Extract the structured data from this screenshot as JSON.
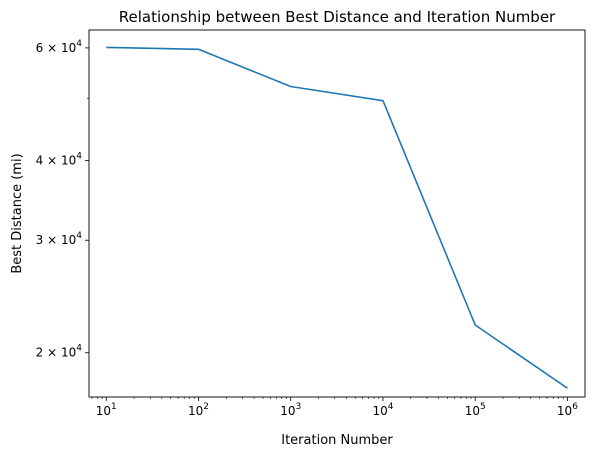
{
  "chart_data": {
    "type": "line",
    "title": "Relationship between Best Distance and Iteration Number",
    "xlabel": "Iteration Number",
    "ylabel": "Best Distance (mi)",
    "xscale": "log",
    "yscale": "log",
    "xlim": [
      6.5,
      1550000
    ],
    "ylim": [
      17050,
      64000
    ],
    "grid": false,
    "series": [
      {
        "x": [
          10,
          100,
          1000,
          10000,
          100000,
          1000000
        ],
        "y": [
          60100,
          59700,
          52200,
          49600,
          22100,
          17600
        ],
        "color": "#1f77b4"
      }
    ],
    "x_ticks": [
      {
        "value": 10,
        "base": "10",
        "exp": "1"
      },
      {
        "value": 100,
        "base": "10",
        "exp": "2"
      },
      {
        "value": 1000,
        "base": "10",
        "exp": "3"
      },
      {
        "value": 10000,
        "base": "10",
        "exp": "4"
      },
      {
        "value": 100000,
        "base": "10",
        "exp": "5"
      },
      {
        "value": 1000000,
        "base": "10",
        "exp": "6"
      }
    ],
    "y_ticks": [
      {
        "value": 20000,
        "mantissa": "2",
        "times": "×",
        "base": "10",
        "exp": "4"
      },
      {
        "value": 30000,
        "mantissa": "3",
        "times": "×",
        "base": "10",
        "exp": "4"
      },
      {
        "value": 40000,
        "mantissa": "4",
        "times": "×",
        "base": "10",
        "exp": "4"
      },
      {
        "value": 60000,
        "mantissa": "6",
        "times": "×",
        "base": "10",
        "exp": "4"
      }
    ],
    "y_minor_ticks": [
      50000
    ]
  }
}
